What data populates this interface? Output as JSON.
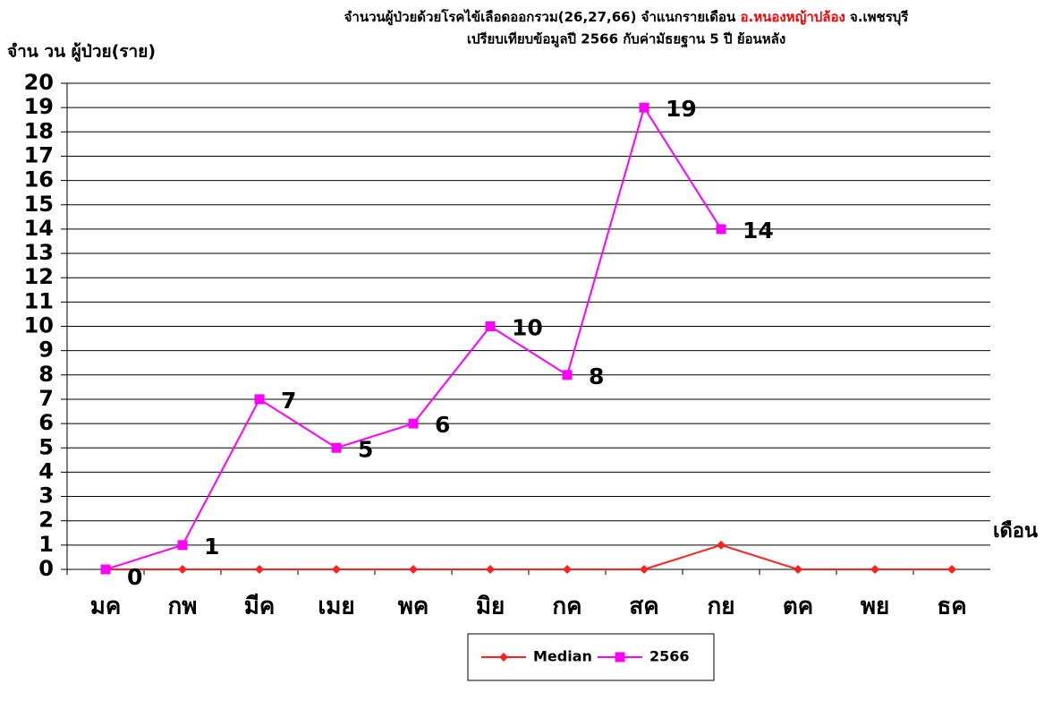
{
  "chart_data": {
    "type": "line",
    "title": [
      "จำนวนผู้ป่วยด้วยโรคไข้เลือดออกรวม(26,27,66) จำแนกรายเดือน ",
      "อ.หนองหญ้าปล้อง",
      " จ.เพชรบุรี"
    ],
    "title_highlight_color": "#ff0000",
    "subtitle": "เปรียบเทียบข้อมูลปี 2566 กับค่ามัธยฐาน 5 ปี ย้อนหลัง",
    "y_label": "จำน วน ผู้ป่วย(ราย)",
    "x_label": "เดือน",
    "categories": [
      "มค",
      "กพ",
      "มีค",
      "เมย",
      "พค",
      "มิย",
      "กค",
      "สค",
      "กย",
      "ตค",
      "พย",
      "ธค"
    ],
    "series": [
      {
        "name": "Median",
        "color": "#ff2020",
        "marker": "diamond",
        "values": [
          0,
          0,
          0,
          0,
          0,
          0,
          0,
          0,
          1,
          0,
          0,
          0
        ]
      },
      {
        "name": "2566",
        "color": "#ff00ff",
        "marker": "square",
        "data_labels": true,
        "values": [
          0,
          1,
          7,
          5,
          6,
          10,
          8,
          19,
          14,
          null,
          null,
          null
        ]
      }
    ],
    "ylim": [
      0,
      20
    ],
    "yticks": [
      0,
      1,
      2,
      3,
      4,
      5,
      6,
      7,
      8,
      9,
      10,
      11,
      12,
      13,
      14,
      15,
      16,
      17,
      18,
      19,
      20
    ],
    "grid": true,
    "legend": "bottom"
  }
}
